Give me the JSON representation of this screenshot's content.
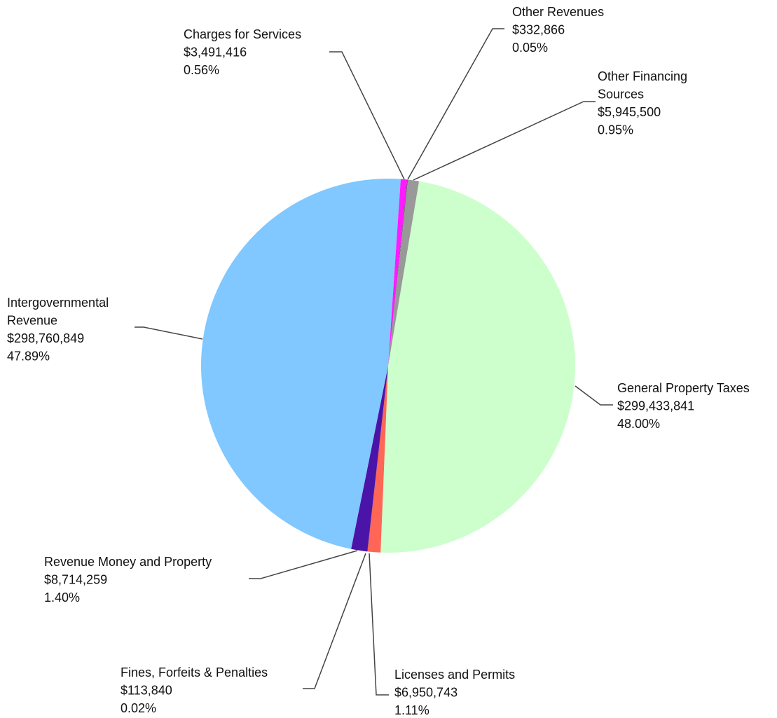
{
  "chart_data": {
    "type": "pie",
    "categories": [
      "General Property Taxes",
      "Licenses and Permits",
      "Fines, Forfeits & Penalties",
      "Revenue Money and Property",
      "Intergovernmental Revenue",
      "Charges for Services",
      "Other Revenues",
      "Other Financing Sources"
    ],
    "values": [
      299433841,
      6950743,
      113840,
      8714259,
      298760849,
      3491416,
      332866,
      5945500
    ],
    "value_labels": [
      "$299,433,841",
      "$6,950,743",
      "$113,840",
      "$8,714,259",
      "$298,760,849",
      "$3,491,416",
      "$332,866",
      "$5,945,500"
    ],
    "percentages": [
      48.0,
      1.11,
      0.02,
      1.4,
      47.89,
      0.56,
      0.05,
      0.95
    ],
    "percentage_labels": [
      "48.00%",
      "1.11%",
      "0.02%",
      "1.40%",
      "47.89%",
      "0.56%",
      "0.05%",
      "0.95%"
    ],
    "colors": [
      "#ccffcc",
      "#ff6655",
      "#222288",
      "#4a14a8",
      "#80c8ff",
      "#ff1aff",
      "#555555",
      "#999999"
    ]
  }
}
